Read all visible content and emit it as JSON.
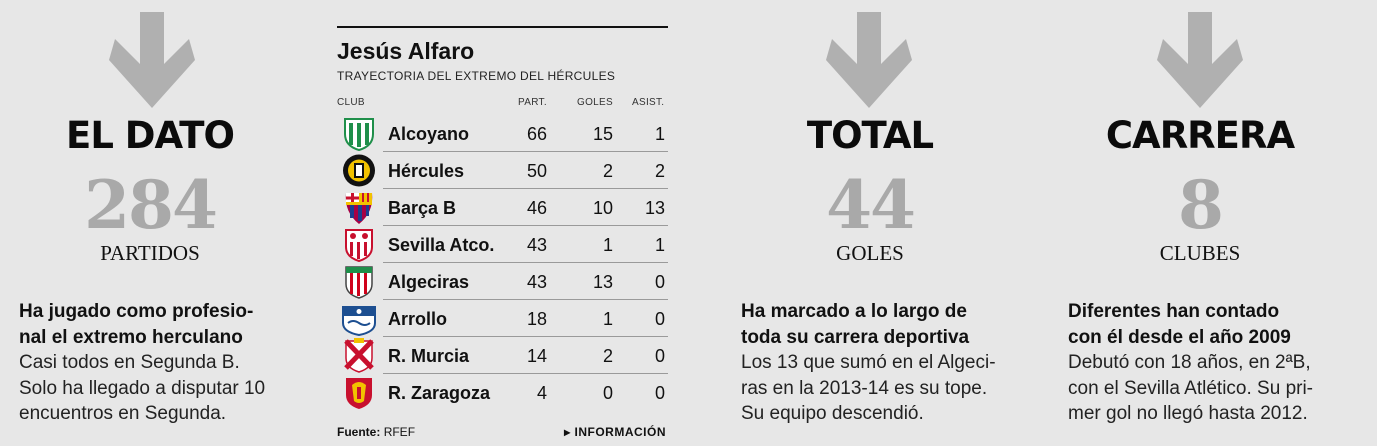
{
  "blocks": {
    "dato": {
      "kicker": "EL DATO",
      "number": "284",
      "unit": "PARTIDOS",
      "lead_lines": [
        "Ha jugado como profesio-",
        "nal el extremo herculano"
      ],
      "body_lines": [
        "Casi todos en Segunda B.",
        "Solo ha llegado a disputar 10",
        "encuentros en Segunda."
      ]
    },
    "total": {
      "kicker": "TOTAL",
      "number": "44",
      "unit": "GOLES",
      "lead_lines": [
        "Ha marcado a lo largo de",
        "toda su carrera deportiva"
      ],
      "body_lines": [
        "Los 13 que sumó en el Algeci-",
        "ras en la 2013-14 es su tope.",
        "Su equipo descendió."
      ]
    },
    "carrera": {
      "kicker": "CARRERA",
      "number": "8",
      "unit": "CLUBES",
      "lead_lines": [
        "Diferentes han contado",
        "con él desde el año 2009"
      ],
      "body_lines": [
        "Debutó con 18 años, en 2ªB,",
        "con el Sevilla Atlético. Su pri-",
        "mer gol no llegó hasta 2012."
      ]
    }
  },
  "table": {
    "title": "Jesús Alfaro",
    "subtitle": "TRAYECTORIA DEL EXTREMO DEL HÉRCULES",
    "headers": {
      "club": "CLUB",
      "part": "PART.",
      "goles": "GOLES",
      "asist": "ASIST."
    },
    "rows": [
      {
        "club": "Alcoyano",
        "part": "66",
        "goles": "15",
        "asist": "1",
        "crest": "alcoyano-crest-icon",
        "colors": [
          "#1f8f4a",
          "#ffffff"
        ]
      },
      {
        "club": "Hércules",
        "part": "50",
        "goles": "2",
        "asist": "2",
        "crest": "hercules-crest-icon",
        "colors": [
          "#111111",
          "#f2c200"
        ]
      },
      {
        "club": "Barça B",
        "part": "46",
        "goles": "10",
        "asist": "13",
        "crest": "barcelona-crest-icon",
        "colors": [
          "#1a3d8f",
          "#a50044"
        ]
      },
      {
        "club": "Sevilla Atco.",
        "part": "43",
        "goles": "1",
        "asist": "1",
        "crest": "sevilla-crest-icon",
        "colors": [
          "#c8102e",
          "#ffffff"
        ]
      },
      {
        "club": "Algeciras",
        "part": "43",
        "goles": "13",
        "asist": "0",
        "crest": "algeciras-crest-icon",
        "colors": [
          "#d0021b",
          "#ffffff"
        ]
      },
      {
        "club": "Arrollo",
        "part": "18",
        "goles": "1",
        "asist": "0",
        "crest": "arroyo-crest-icon",
        "colors": [
          "#1d4f91",
          "#ffffff"
        ]
      },
      {
        "club": "R. Murcia",
        "part": "14",
        "goles": "2",
        "asist": "0",
        "crest": "murcia-crest-icon",
        "colors": [
          "#c8102e",
          "#ffffff"
        ]
      },
      {
        "club": "R. Zaragoza",
        "part": "4",
        "goles": "0",
        "asist": "0",
        "crest": "zaragoza-crest-icon",
        "colors": [
          "#c8102e",
          "#1d4f91"
        ]
      }
    ],
    "source_label": "Fuente:",
    "source": "RFEF",
    "info_label": "INFORMACIÓN"
  }
}
